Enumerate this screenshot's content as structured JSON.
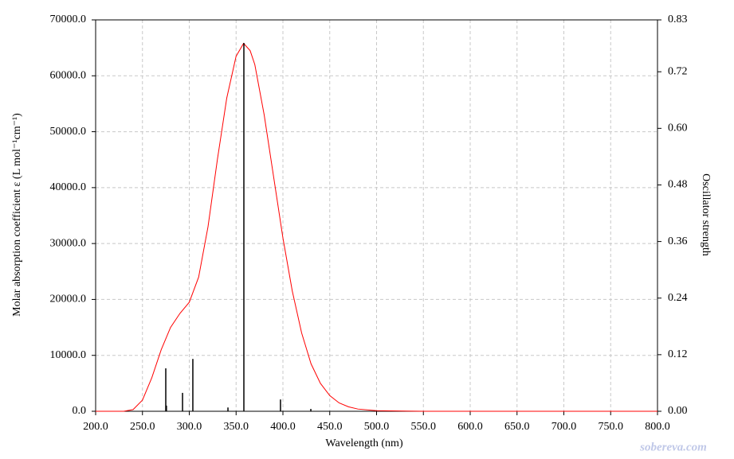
{
  "chart_data": {
    "type": "line",
    "xlabel": "Wavelength (nm)",
    "ylabel": "Molar absorption coefficient  ε (L mol⁻¹cm⁻¹)",
    "y2label": "Oscillator strength",
    "watermark": "sobereva.com",
    "xlim": [
      200,
      800
    ],
    "xticks": [
      {
        "value": 200,
        "label": "200.0"
      },
      {
        "value": 250,
        "label": "250.0"
      },
      {
        "value": 300,
        "label": "300.0"
      },
      {
        "value": 350,
        "label": "350.0"
      },
      {
        "value": 400,
        "label": "400.0"
      },
      {
        "value": 450,
        "label": "450.0"
      },
      {
        "value": 500,
        "label": "500.0"
      },
      {
        "value": 550,
        "label": "550.0"
      },
      {
        "value": 600,
        "label": "600.0"
      },
      {
        "value": 650,
        "label": "650.0"
      },
      {
        "value": 700,
        "label": "700.0"
      },
      {
        "value": 750,
        "label": "750.0"
      },
      {
        "value": 800,
        "label": "800.0"
      }
    ],
    "ylim": [
      0,
      70000
    ],
    "yticks": [
      {
        "value": 0,
        "label": "0.0"
      },
      {
        "value": 10000,
        "label": "10000.0"
      },
      {
        "value": 20000,
        "label": "20000.0"
      },
      {
        "value": 30000,
        "label": "30000.0"
      },
      {
        "value": 40000,
        "label": "40000.0"
      },
      {
        "value": 50000,
        "label": "50000.0"
      },
      {
        "value": 60000,
        "label": "60000.0"
      },
      {
        "value": 70000,
        "label": "70000.0"
      }
    ],
    "y2lim": [
      0,
      0.83
    ],
    "y2ticks": [
      {
        "value": 0,
        "label": "0.00"
      },
      0.12,
      0.24,
      0.36,
      0.48,
      {
        "value": 0.6,
        "label": "0.60"
      },
      0.72,
      0.83
    ],
    "grid": true,
    "series": [
      {
        "color": "#ff0000",
        "x": [
          200,
          230,
          240,
          250,
          260,
          270,
          280,
          290,
          300,
          310,
          320,
          330,
          340,
          350,
          358,
          365,
          370,
          380,
          390,
          400,
          410,
          420,
          430,
          440,
          450,
          460,
          470,
          480,
          500,
          550,
          600,
          800
        ],
        "values": [
          0,
          0,
          300,
          2000,
          6000,
          11000,
          15000,
          17500,
          19500,
          24000,
          33000,
          45000,
          56000,
          63500,
          65800,
          64500,
          62000,
          53000,
          42000,
          31000,
          21500,
          14000,
          8500,
          5000,
          2800,
          1500,
          800,
          400,
          100,
          0,
          0,
          0
        ]
      },
      {
        "color": "#000000",
        "style": "stick",
        "axis": "y2",
        "x": [
          274.9,
          275.6,
          292.8,
          303.8,
          341.3,
          358.3,
          397.4,
          429.8
        ],
        "values": [
          0.091,
          0.012,
          0.039,
          0.111,
          0.008,
          0.781,
          0.025,
          0.005
        ]
      }
    ]
  }
}
